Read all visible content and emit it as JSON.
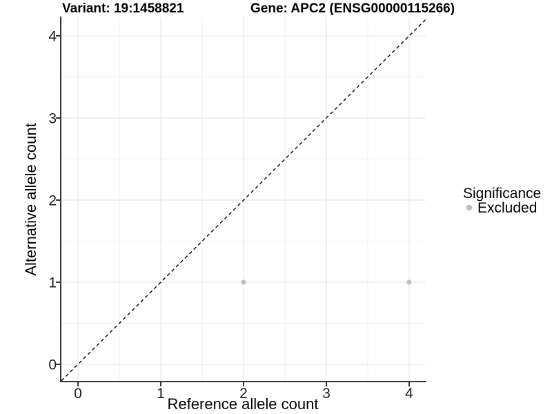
{
  "chart_data": {
    "type": "scatter",
    "titles": {
      "left": "Variant: 19:1458821",
      "right": "Gene: APC2 (ENSG00000115266)"
    },
    "xlabel": "Reference allele count",
    "ylabel": "Alternative allele count",
    "xticks": [
      0,
      1,
      2,
      3,
      4
    ],
    "yticks": [
      0,
      1,
      2,
      3,
      4
    ],
    "xlim": [
      -0.2,
      4.2
    ],
    "ylim": [
      -0.2,
      4.2
    ],
    "grid": "major and minor, light gray on white",
    "identity_line": {
      "style": "dashed",
      "color": "#000000",
      "from": [
        -0.2,
        -0.2
      ],
      "to": [
        4.2,
        4.2
      ]
    },
    "series": [
      {
        "name": "Excluded",
        "color": "#bfbfbf",
        "points": [
          {
            "x": 2,
            "y": 1
          },
          {
            "x": 4,
            "y": 1
          }
        ]
      }
    ],
    "legend": {
      "title": "Significance",
      "position": "right",
      "items": [
        {
          "label": "Excluded",
          "color": "#bfbfbf",
          "marker": "point"
        }
      ]
    },
    "colors": {
      "axis_line": "#333333",
      "major_grid": "#e3e3e3",
      "minor_grid": "#f0f0f0",
      "point": "#bfbfbf"
    }
  }
}
